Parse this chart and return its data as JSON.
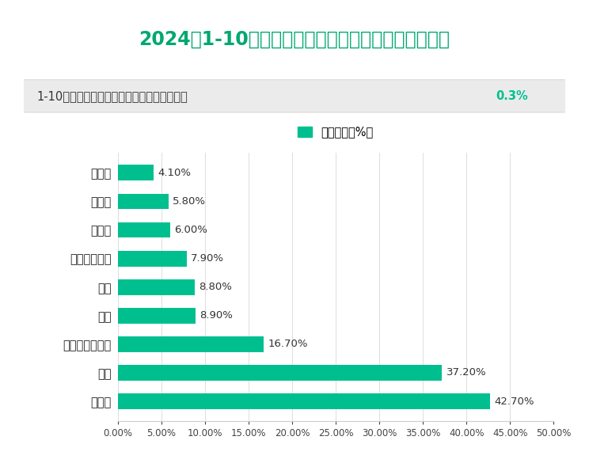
{
  "title": "2024年1-10月晋中市规模以上工业产品产量增长情况",
  "subtitle_text": "1-10月份，全市规模以上工业增加值同比增长",
  "subtitle_highlight": "0.3%",
  "legend_label": "产量增长（%）",
  "categories": [
    "氧化铝",
    "铁合金",
    "中成药",
    "日用玻璃制品",
    "焦炭",
    "白酒",
    "石墨及碳素制品",
    "化肥",
    "合成氨"
  ],
  "values": [
    4.1,
    5.8,
    6.0,
    7.9,
    8.8,
    8.9,
    16.7,
    37.2,
    42.7
  ],
  "bar_color": "#00BF8F",
  "title_color": "#00A870",
  "subtitle_box_color": "#EBEBEB",
  "subtitle_text_color": "#333333",
  "subtitle_highlight_color": "#00BF8F",
  "value_label_color": "#333333",
  "background_color": "#FFFFFF",
  "xlim": [
    0,
    50
  ],
  "xtick_values": [
    0,
    5,
    10,
    15,
    20,
    25,
    30,
    35,
    40,
    45,
    50
  ],
  "figsize": [
    7.44,
    5.85
  ],
  "dpi": 100
}
